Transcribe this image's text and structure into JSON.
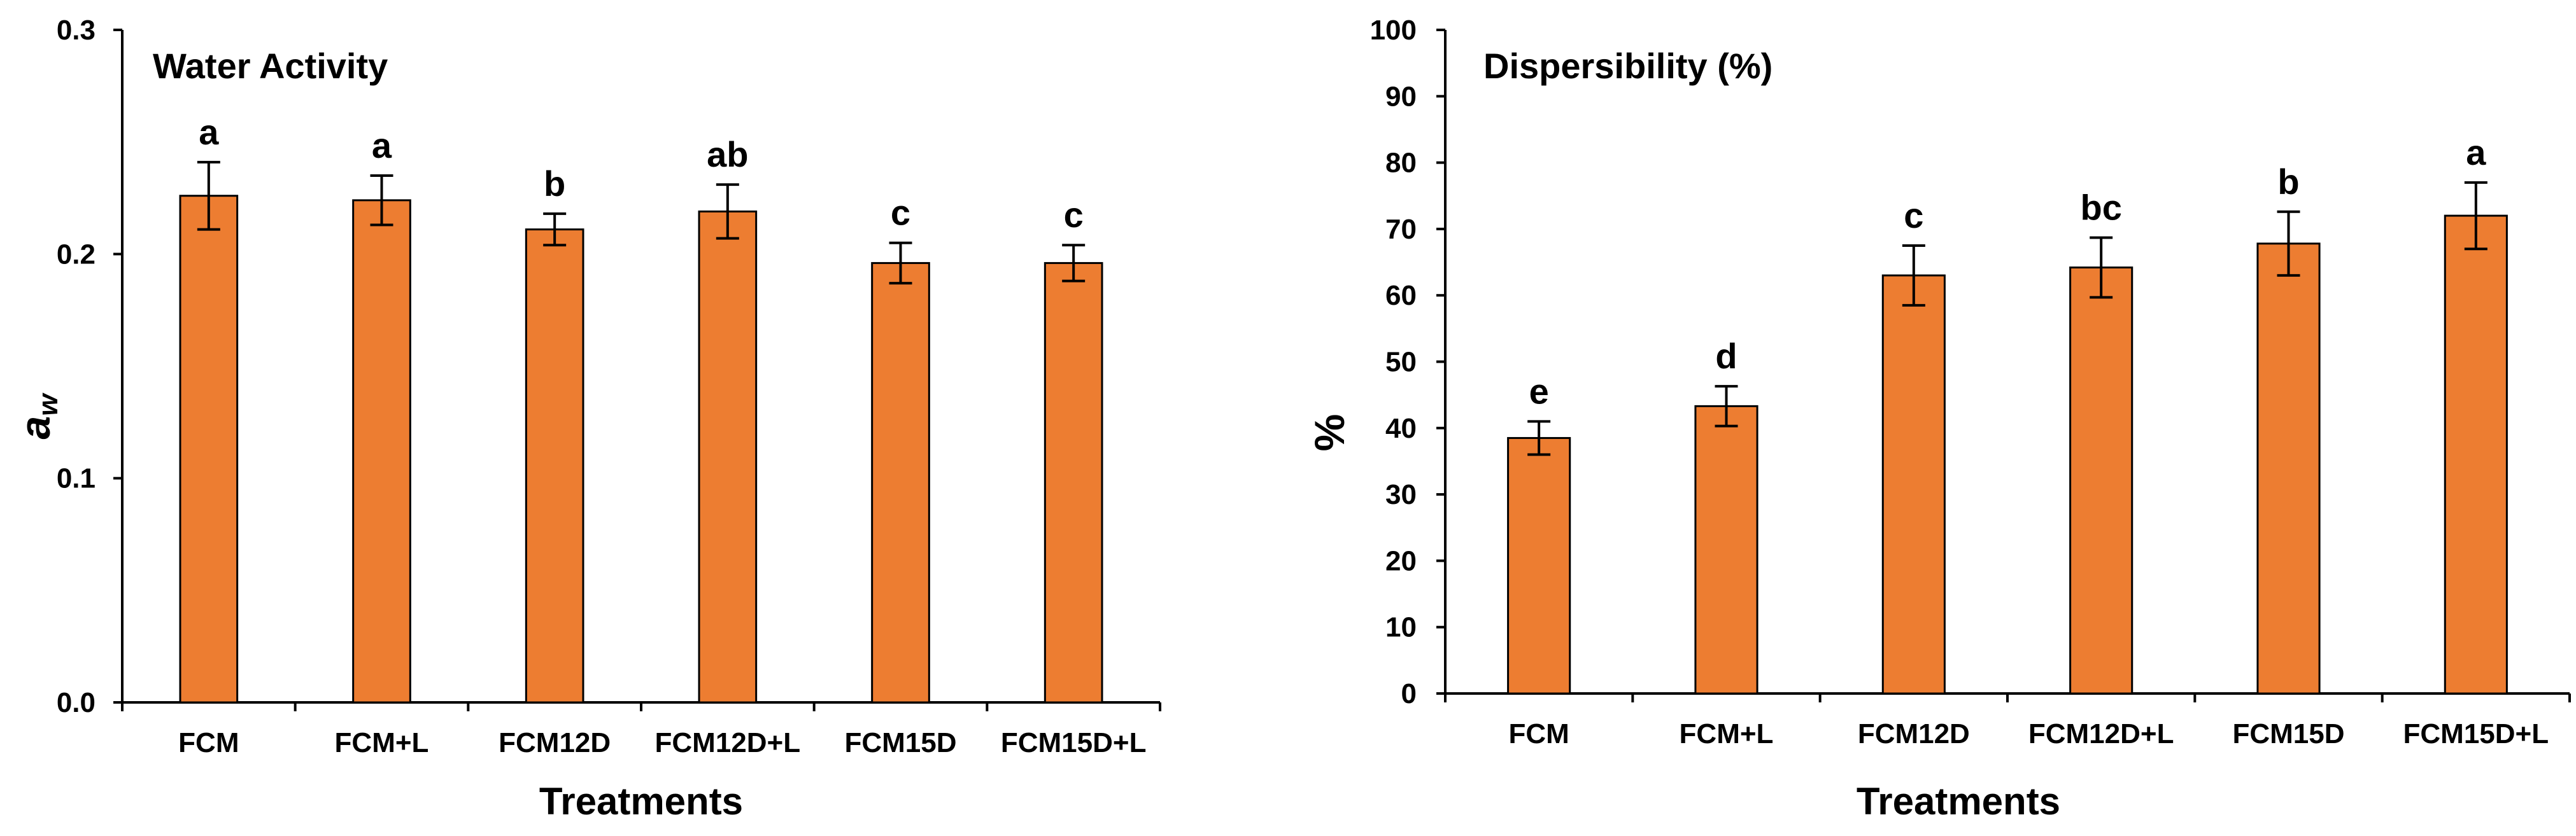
{
  "colors": {
    "bar": "#ED7D31",
    "bar_edge": "#000000",
    "axis": "#000000"
  },
  "chart_data": [
    {
      "type": "bar",
      "title": "Water Activity",
      "xlabel": "Treatments",
      "ylabel_main": "a",
      "ylabel_sub": "w",
      "categories": [
        "FCM",
        "FCM+L",
        "FCM12D",
        "FCM12D+L",
        "FCM15D",
        "FCM15D+L"
      ],
      "values": [
        0.226,
        0.224,
        0.211,
        0.219,
        0.196,
        0.196
      ],
      "errors": [
        0.015,
        0.011,
        0.007,
        0.012,
        0.009,
        0.008
      ],
      "significance": [
        "a",
        "a",
        "b",
        "ab",
        "c",
        "c"
      ],
      "ylim": [
        0,
        0.3
      ],
      "yticks": [
        0,
        0.1,
        0.2,
        0.3
      ],
      "ytick_labels": [
        "0.0",
        "0.1",
        "0.2",
        "0.3"
      ]
    },
    {
      "type": "bar",
      "title": "Dispersibility (%)",
      "xlabel": "Treatments",
      "ylabel_main": "%",
      "ylabel_sub": "",
      "categories": [
        "FCM",
        "FCM+L",
        "FCM12D",
        "FCM12D+L",
        "FCM15D",
        "FCM15D+L"
      ],
      "values": [
        38.5,
        43.3,
        63.0,
        64.2,
        67.8,
        72.0
      ],
      "errors": [
        2.5,
        3.0,
        4.5,
        4.5,
        4.8,
        5.0
      ],
      "significance": [
        "e",
        "d",
        "c",
        "bc",
        "b",
        "a"
      ],
      "ylim": [
        0,
        100
      ],
      "yticks": [
        0,
        10,
        20,
        30,
        40,
        50,
        60,
        70,
        80,
        90,
        100
      ],
      "ytick_labels": [
        "0",
        "10",
        "20",
        "30",
        "40",
        "50",
        "60",
        "70",
        "80",
        "90",
        "100"
      ]
    }
  ]
}
